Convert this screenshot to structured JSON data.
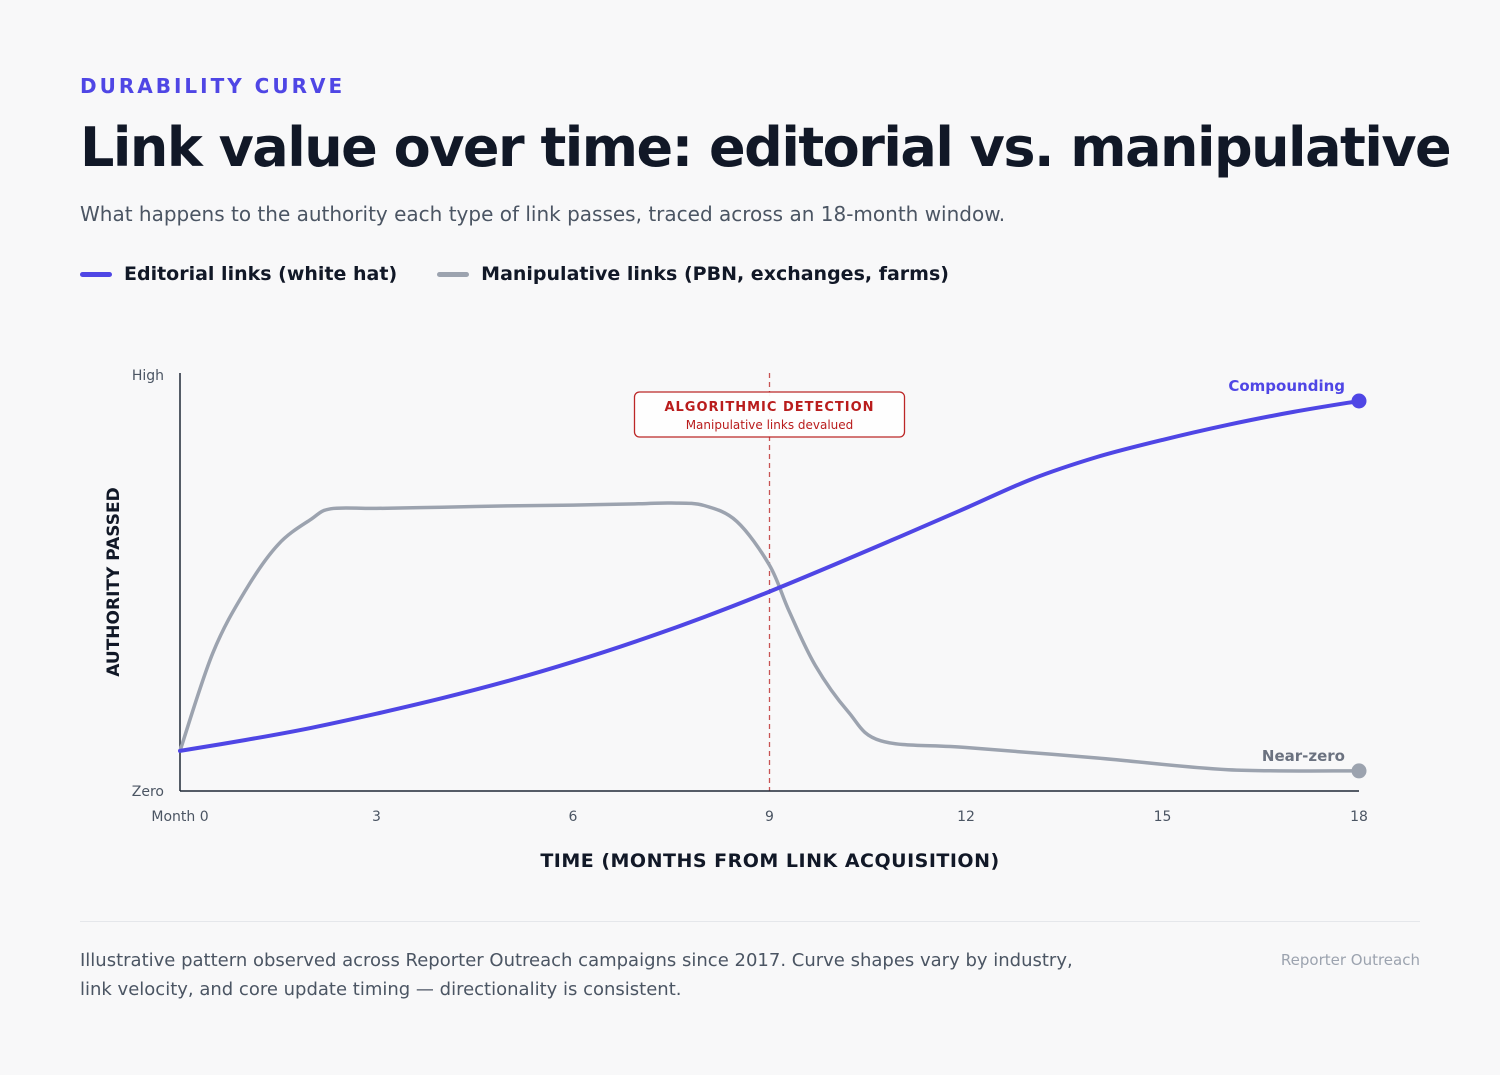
{
  "header": {
    "eyebrow": "DURABILITY CURVE",
    "title": "Link value over time: editorial vs. manipulative",
    "subtitle": "What happens to the authority each type of link passes, traced across an 18-month window."
  },
  "legend": {
    "items": [
      {
        "label": "Editorial links (white hat)",
        "color": "#4f46e5"
      },
      {
        "label": "Manipulative links (PBN, exchanges, farms)",
        "color": "#9ca3af"
      }
    ]
  },
  "chart_data": {
    "type": "line",
    "xlabel": "TIME (MONTHS FROM LINK ACQUISITION)",
    "ylabel": "AUTHORITY PASSED",
    "xlim": [
      0,
      18
    ],
    "ylim": [
      0,
      100
    ],
    "x_ticks": [
      {
        "value": 0,
        "label": "Month 0"
      },
      {
        "value": 3,
        "label": "3"
      },
      {
        "value": 6,
        "label": "6"
      },
      {
        "value": 9,
        "label": "9"
      },
      {
        "value": 12,
        "label": "12"
      },
      {
        "value": 15,
        "label": "15"
      },
      {
        "value": 18,
        "label": "18"
      }
    ],
    "y_ticks": [
      {
        "value": 0,
        "label": "Zero"
      },
      {
        "value": 100,
        "label": "High"
      }
    ],
    "grid": false,
    "legend_position": "top-left",
    "series": [
      {
        "name": "Editorial links (white hat)",
        "color": "#4f46e5",
        "end_label": "Compounding",
        "x": [
          0,
          1,
          2,
          3,
          4,
          5,
          6,
          7,
          8,
          9,
          10,
          11,
          12,
          13,
          14,
          15,
          16,
          17,
          18
        ],
        "y": [
          9.6,
          12.2,
          15.1,
          18.5,
          22.2,
          26.3,
          30.9,
          36.0,
          41.6,
          47.7,
          54.2,
          60.9,
          67.7,
          74.6,
          79.9,
          84.0,
          87.6,
          90.7,
          93.3
        ]
      },
      {
        "name": "Manipulative links (PBN, exchanges, farms)",
        "color": "#9ca3af",
        "end_label": "Near-zero",
        "x": [
          0,
          0.5,
          1,
          1.5,
          2,
          2.3,
          3,
          4,
          5,
          6,
          7,
          7.5,
          8,
          8.5,
          9,
          9.3,
          9.7,
          10.2,
          10.7,
          12,
          14,
          16,
          18
        ],
        "y": [
          9.6,
          33.0,
          48.0,
          59.0,
          65.0,
          67.5,
          67.6,
          67.9,
          68.2,
          68.4,
          68.7,
          68.9,
          68.3,
          64.5,
          54.0,
          43.0,
          30.0,
          19.0,
          12.0,
          10.4,
          7.9,
          5.1,
          4.8
        ]
      }
    ],
    "annotations": [
      {
        "x": 9,
        "title": "ALGORITHMIC DETECTION",
        "text": "Manipulative links devalued",
        "color": "#b91c1c"
      }
    ]
  },
  "footer": {
    "note": "Illustrative pattern observed across Reporter Outreach campaigns since 2017. Curve shapes vary by industry, link velocity, and core update timing — directionality is consistent.",
    "brand": "Reporter Outreach"
  }
}
